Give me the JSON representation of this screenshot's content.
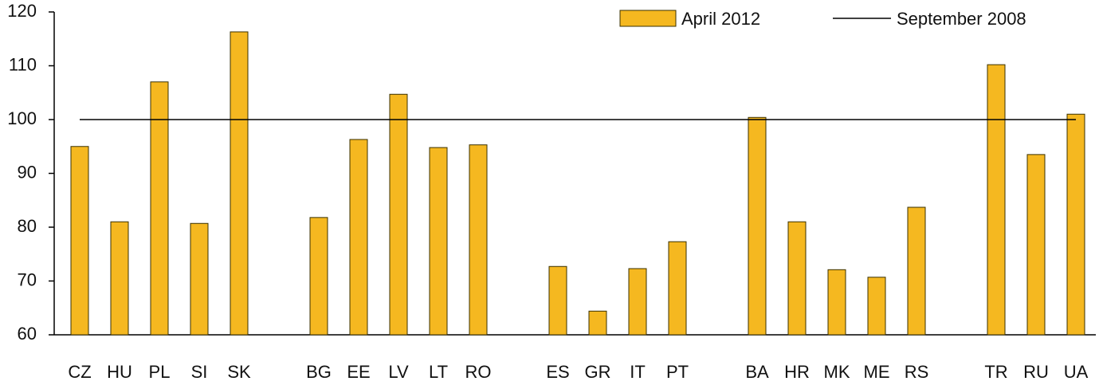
{
  "chart_data": {
    "type": "bar",
    "categories": [
      "CZ",
      "HU",
      "PL",
      "SI",
      "SK",
      null,
      "BG",
      "EE",
      "LV",
      "LT",
      "RO",
      null,
      "ES",
      "GR",
      "IT",
      "PT",
      null,
      "BA",
      "HR",
      "MK",
      "ME",
      "RS",
      null,
      "TR",
      "RU",
      "UA"
    ],
    "series": [
      {
        "name": "April 2012",
        "color": "#f5b820",
        "values": [
          95,
          81,
          107,
          80.7,
          116.3,
          null,
          81.8,
          96.3,
          104.7,
          94.8,
          95.3,
          null,
          72.7,
          64.4,
          72.3,
          77.3,
          null,
          100.4,
          81,
          72.1,
          70.7,
          83.7,
          null,
          110.2,
          93.5,
          101
        ]
      }
    ],
    "reference_line": {
      "name": "September 2008",
      "value": 100,
      "color": "#000000"
    },
    "ylim": [
      60,
      120
    ],
    "yticks": [
      60,
      70,
      80,
      90,
      100,
      110,
      120
    ],
    "legend": "top-right",
    "grid": false
  }
}
